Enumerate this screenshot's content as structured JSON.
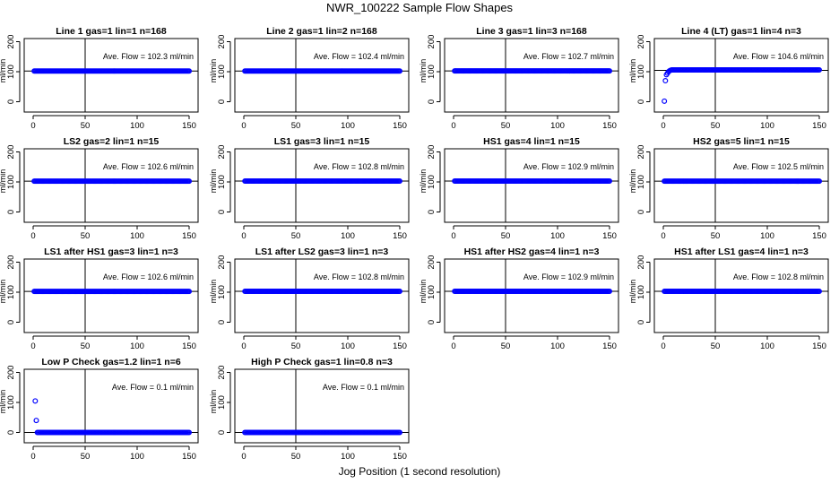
{
  "title": "NWR_100222  Sample Flow Shapes",
  "xlabel": "Jog Position (1 second resolution)",
  "ylabel": "ml/min",
  "colors": {
    "points": "#0000ff",
    "axes": "#000000"
  },
  "chart_data": [
    {
      "type": "scatter",
      "title": "Line 1 gas=1 lin=1 n=168",
      "annotation": "Ave. Flow =  102.3  ml/min",
      "xlim": [
        0,
        150
      ],
      "ylim": [
        0,
        200
      ],
      "xticks": [
        "0",
        "50",
        "100",
        "150"
      ],
      "yticks": [
        "0",
        "100",
        "200"
      ],
      "vline": 50,
      "hline": 102.3,
      "start": [],
      "level": 102.3,
      "x_range": [
        1,
        150
      ]
    },
    {
      "type": "scatter",
      "title": "Line 2 gas=1 lin=2 n=168",
      "annotation": "Ave. Flow =  102.4  ml/min",
      "xlim": [
        0,
        150
      ],
      "ylim": [
        0,
        200
      ],
      "xticks": [
        "0",
        "50",
        "100",
        "150"
      ],
      "yticks": [
        "0",
        "100",
        "200"
      ],
      "vline": 50,
      "hline": 102.4,
      "start": [],
      "level": 102.4,
      "x_range": [
        1,
        150
      ]
    },
    {
      "type": "scatter",
      "title": "Line 3 gas=1 lin=3 n=168",
      "annotation": "Ave. Flow =  102.7  ml/min",
      "xlim": [
        0,
        150
      ],
      "ylim": [
        0,
        200
      ],
      "xticks": [
        "0",
        "50",
        "100",
        "150"
      ],
      "yticks": [
        "0",
        "100",
        "200"
      ],
      "vline": 50,
      "hline": 102.7,
      "start": [],
      "level": 102.7,
      "x_range": [
        1,
        150
      ]
    },
    {
      "type": "scatter",
      "title": "Line 4 (LT) gas=1 lin=4 n=3",
      "annotation": "Ave. Flow =  104.6  ml/min",
      "xlim": [
        0,
        150
      ],
      "ylim": [
        0,
        200
      ],
      "xticks": [
        "0",
        "50",
        "100",
        "150"
      ],
      "yticks": [
        "0",
        "100",
        "200"
      ],
      "vline": 50,
      "hline": 104.6,
      "start": [
        [
          1,
          2
        ],
        [
          2,
          70
        ],
        [
          3,
          90
        ],
        [
          4,
          95
        ],
        [
          5,
          100
        ],
        [
          6,
          103
        ],
        [
          7,
          105
        ],
        [
          8,
          106
        ]
      ],
      "level": 106,
      "x_range": [
        9,
        150
      ]
    },
    {
      "type": "scatter",
      "title": "LS2 gas=2 lin=1 n=15",
      "annotation": "Ave. Flow =  102.6  ml/min",
      "xlim": [
        0,
        150
      ],
      "ylim": [
        0,
        200
      ],
      "xticks": [
        "0",
        "50",
        "100",
        "150"
      ],
      "yticks": [
        "0",
        "100",
        "200"
      ],
      "vline": 50,
      "hline": 102.6,
      "start": [],
      "level": 102.6,
      "x_range": [
        1,
        150
      ]
    },
    {
      "type": "scatter",
      "title": "LS1 gas=3 lin=1 n=15",
      "annotation": "Ave. Flow =  102.8  ml/min",
      "xlim": [
        0,
        150
      ],
      "ylim": [
        0,
        200
      ],
      "xticks": [
        "0",
        "50",
        "100",
        "150"
      ],
      "yticks": [
        "0",
        "100",
        "200"
      ],
      "vline": 50,
      "hline": 102.8,
      "start": [],
      "level": 102.8,
      "x_range": [
        1,
        150
      ]
    },
    {
      "type": "scatter",
      "title": "HS1 gas=4 lin=1 n=15",
      "annotation": "Ave. Flow =  102.9  ml/min",
      "xlim": [
        0,
        150
      ],
      "ylim": [
        0,
        200
      ],
      "xticks": [
        "0",
        "50",
        "100",
        "150"
      ],
      "yticks": [
        "0",
        "100",
        "200"
      ],
      "vline": 50,
      "hline": 102.9,
      "start": [],
      "level": 102.9,
      "x_range": [
        1,
        150
      ]
    },
    {
      "type": "scatter",
      "title": "HS2 gas=5 lin=1 n=15",
      "annotation": "Ave. Flow =  102.5  ml/min",
      "xlim": [
        0,
        150
      ],
      "ylim": [
        0,
        200
      ],
      "xticks": [
        "0",
        "50",
        "100",
        "150"
      ],
      "yticks": [
        "0",
        "100",
        "200"
      ],
      "vline": 50,
      "hline": 102.5,
      "start": [],
      "level": 102.5,
      "x_range": [
        1,
        150
      ]
    },
    {
      "type": "scatter",
      "title": "LS1 after HS1 gas=3 lin=1 n=3",
      "annotation": "Ave. Flow =  102.6  ml/min",
      "xlim": [
        0,
        150
      ],
      "ylim": [
        0,
        200
      ],
      "xticks": [
        "0",
        "50",
        "100",
        "150"
      ],
      "yticks": [
        "0",
        "100",
        "200"
      ],
      "vline": 50,
      "hline": 102.6,
      "start": [],
      "level": 102.6,
      "x_range": [
        1,
        150
      ]
    },
    {
      "type": "scatter",
      "title": "LS1 after LS2 gas=3 lin=1 n=3",
      "annotation": "Ave. Flow =  102.8  ml/min",
      "xlim": [
        0,
        150
      ],
      "ylim": [
        0,
        200
      ],
      "xticks": [
        "0",
        "50",
        "100",
        "150"
      ],
      "yticks": [
        "0",
        "100",
        "200"
      ],
      "vline": 50,
      "hline": 102.8,
      "start": [],
      "level": 102.8,
      "x_range": [
        1,
        150
      ]
    },
    {
      "type": "scatter",
      "title": "HS1 after HS2 gas=4 lin=1 n=3",
      "annotation": "Ave. Flow =  102.9  ml/min",
      "xlim": [
        0,
        150
      ],
      "ylim": [
        0,
        200
      ],
      "xticks": [
        "0",
        "50",
        "100",
        "150"
      ],
      "yticks": [
        "0",
        "100",
        "200"
      ],
      "vline": 50,
      "hline": 102.9,
      "start": [],
      "level": 102.9,
      "x_range": [
        1,
        150
      ]
    },
    {
      "type": "scatter",
      "title": "HS1 after LS1 gas=4 lin=1 n=3",
      "annotation": "Ave. Flow =  102.8  ml/min",
      "xlim": [
        0,
        150
      ],
      "ylim": [
        0,
        200
      ],
      "xticks": [
        "0",
        "50",
        "100",
        "150"
      ],
      "yticks": [
        "0",
        "100",
        "200"
      ],
      "vline": 50,
      "hline": 102.8,
      "start": [],
      "level": 102.8,
      "x_range": [
        1,
        150
      ]
    },
    {
      "type": "scatter",
      "title": "Low P Check gas=1.2 lin=1 n=6",
      "annotation": "Ave. Flow =  0.1  ml/min",
      "xlim": [
        0,
        150
      ],
      "ylim": [
        0,
        200
      ],
      "xticks": [
        "0",
        "50",
        "100",
        "150"
      ],
      "yticks": [
        "0",
        "100",
        "200"
      ],
      "vline": 50,
      "hline": 0.1,
      "start": [
        [
          2,
          105
        ],
        [
          3,
          40
        ]
      ],
      "level": 0.1,
      "x_range": [
        4,
        150
      ]
    },
    {
      "type": "scatter",
      "title": "High P Check gas=1 lin=0.8 n=3",
      "annotation": "Ave. Flow =  0.1  ml/min",
      "xlim": [
        0,
        150
      ],
      "ylim": [
        0,
        200
      ],
      "xticks": [
        "0",
        "50",
        "100",
        "150"
      ],
      "yticks": [
        "0",
        "100",
        "200"
      ],
      "vline": 50,
      "hline": 0.1,
      "start": [],
      "level": 0.1,
      "x_range": [
        1,
        150
      ]
    }
  ]
}
